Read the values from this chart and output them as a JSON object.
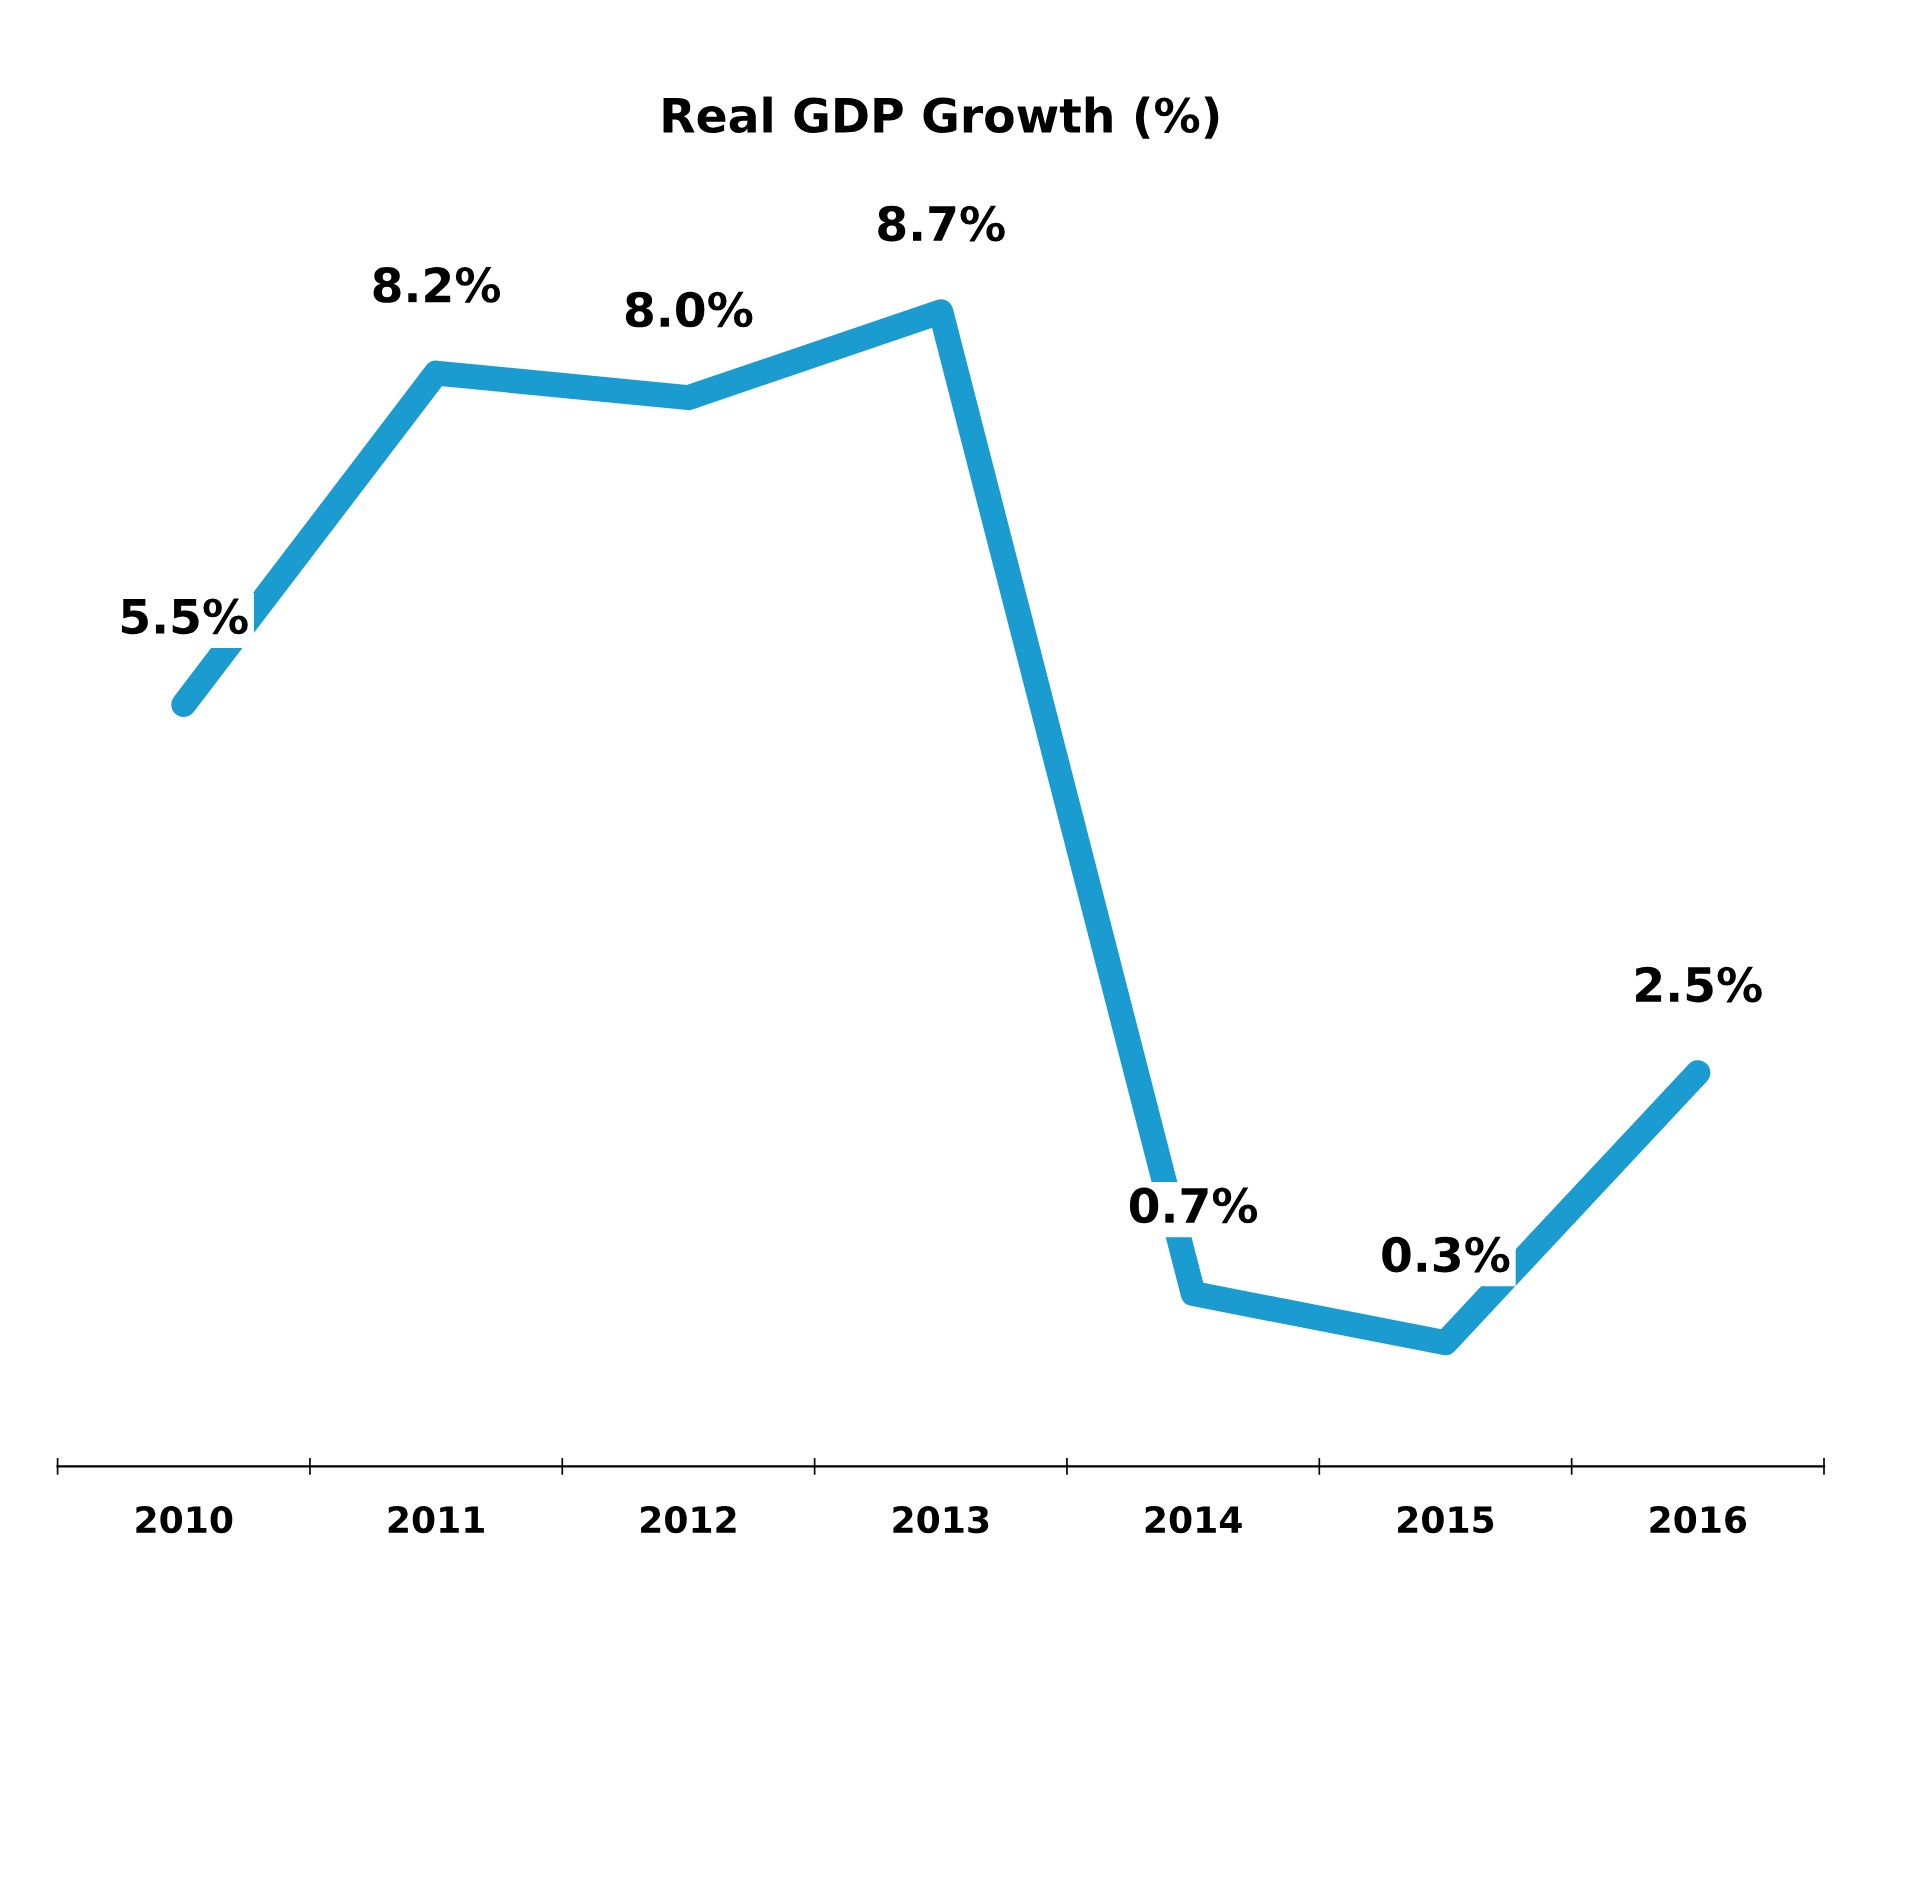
{
  "chart_data": {
    "type": "line",
    "title": "Real GDP Growth (%)",
    "categories": [
      "2010",
      "2011",
      "2012",
      "2013",
      "2014",
      "2015",
      "2016"
    ],
    "series": [
      {
        "color": "#1b9cd0",
        "values": [
          5.5,
          8.2,
          8.0,
          8.7,
          0.7,
          0.3,
          2.5
        ],
        "value_labels": [
          "5.5%",
          "8.2%",
          "8.0%",
          "8.7%",
          "0.7%",
          "0.3%",
          "2.5%"
        ]
      }
    ],
    "tick_labels": "x",
    "grid": false,
    "legend": false,
    "line_style": "solid"
  }
}
